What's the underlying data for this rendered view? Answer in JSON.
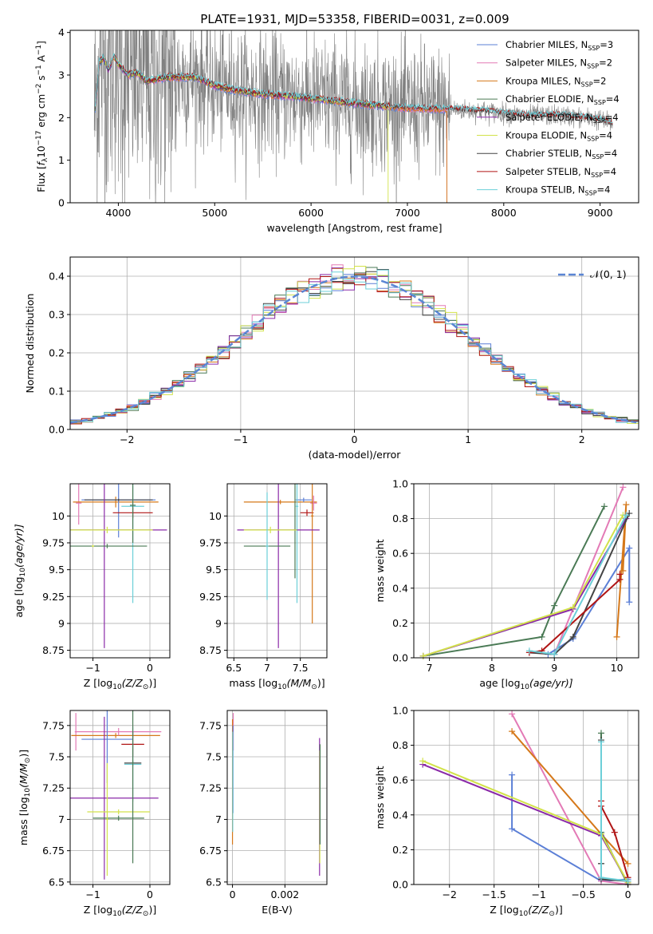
{
  "figure": {
    "title": "PLATE=1931, MJD=53358, FIBERID=0031, z=0.009"
  },
  "colors": {
    "Chabrier MILES": "#5b7fd6",
    "Salpeter MILES": "#e37ab6",
    "Kroupa MILES": "#d5781a",
    "Chabrier ELODIE": "#4a7a55",
    "Salpeter ELODIE": "#8a2aa8",
    "Kroupa ELODIE": "#d2e24a",
    "Chabrier STELIB": "#444444",
    "Salpeter STELIB": "#b01515",
    "Kroupa STELIB": "#6ccfd8",
    "data": "#808080",
    "gauss": "#5b86d4"
  },
  "chart_data": [
    {
      "id": "spectrum",
      "type": "line",
      "xlabel": "wavelength [Angstrom, rest frame]",
      "ylabel_parts": [
        "Flux [",
        "f",
        "λ",
        "10",
        "−17",
        " erg cm",
        "−2",
        " s",
        "−1",
        " A",
        "−1",
        "]"
      ],
      "xlim": [
        3500,
        9400
      ],
      "ylim": [
        0,
        4.05
      ],
      "xticks": [
        4000,
        5000,
        6000,
        7000,
        8000,
        9000
      ],
      "yticks": [
        0,
        1,
        2,
        3,
        4
      ],
      "legend_position": "top-right",
      "legend": [
        {
          "name": "Chabrier MILES",
          "nssp": "3"
        },
        {
          "name": "Salpeter MILES",
          "nssp": "2"
        },
        {
          "name": "Kroupa MILES",
          "nssp": "2"
        },
        {
          "name": "Chabrier ELODIE",
          "nssp": "4"
        },
        {
          "name": "Salpeter ELODIE",
          "nssp": "4"
        },
        {
          "name": "Kroupa ELODIE",
          "nssp": "4"
        },
        {
          "name": "Chabrier STELIB",
          "nssp": "4"
        },
        {
          "name": "Salpeter STELIB",
          "nssp": "4"
        },
        {
          "name": "Kroupa STELIB",
          "nssp": "4"
        }
      ],
      "continuum": {
        "x": [
          3760,
          3800,
          3850,
          3900,
          3950,
          4000,
          4100,
          4200,
          4300,
          4500,
          4800,
          5000,
          5200,
          5500,
          5800,
          6200,
          6600,
          7000,
          7400,
          7800,
          8200,
          8600,
          9000,
          9130
        ],
        "y": [
          2.2,
          3.3,
          3.4,
          3.1,
          3.45,
          3.25,
          3.0,
          3.05,
          2.85,
          2.95,
          2.95,
          2.75,
          2.65,
          2.55,
          2.5,
          2.4,
          2.3,
          2.22,
          2.2,
          2.15,
          2.05,
          2.05,
          1.95,
          1.85
        ]
      },
      "data_range": [
        3750,
        9130
      ],
      "model_ranges": {
        "MILES": [
          3760,
          7410
        ],
        "ELODIE": [
          3760,
          6800
        ],
        "STELIB": [
          3760,
          9130
        ]
      }
    },
    {
      "id": "residuals",
      "type": "step",
      "xlabel": "(data-model)/error",
      "ylabel": "Normed distribution",
      "xlim": [
        -2.5,
        2.5
      ],
      "ylim": [
        0,
        0.45
      ],
      "xticks": [
        -2,
        -1,
        0,
        1,
        2
      ],
      "yticks": [
        0.0,
        0.1,
        0.2,
        0.3,
        0.4
      ],
      "legend_position": "top-right",
      "legend_label": "𝒩(0, 1)"
    },
    {
      "id": "age_vs_Z",
      "type": "errorbar",
      "xlabel_parts": [
        "Z [log",
        "10",
        "(Z/Z",
        "⊙",
        ")]"
      ],
      "ylabel_parts": [
        "age  [log",
        "10",
        "(age/yr)]"
      ],
      "xlim": [
        -1.4,
        0.35
      ],
      "ylim": [
        8.68,
        10.3
      ],
      "xticks": [
        -1,
        0
      ],
      "yticks": [
        8.75,
        9.0,
        9.25,
        9.5,
        9.75,
        10.0
      ],
      "points": [
        {
          "model": "Salpeter MILES",
          "x": -1.25,
          "xe": 0.05,
          "y": 10.12,
          "ye": 0.2
        },
        {
          "model": "Kroupa MILES",
          "x": -0.6,
          "xe": 0.75,
          "y": 10.13,
          "ye": 0.05
        },
        {
          "model": "Chabrier MILES",
          "x": -0.55,
          "xe": 0.65,
          "y": 10.15,
          "ye": 0.35
        },
        {
          "model": "Chabrier STELIB",
          "x": -0.55,
          "xe": 0.6,
          "y": 10.15,
          "ye": 0.01
        },
        {
          "model": "Kroupa STELIB",
          "x": -0.3,
          "xe": 0.2,
          "y": 10.09,
          "ye": 0.9
        },
        {
          "model": "Salpeter STELIB",
          "x": -0.3,
          "xe": 0.35,
          "y": 10.03,
          "ye": 0.05
        },
        {
          "model": "Chabrier ELODIE",
          "x": -0.3,
          "xe": 0.05,
          "y": 10.1,
          "ye": 0.35
        },
        {
          "model": "Salpeter ELODIE",
          "x": -0.8,
          "xe": 1.1,
          "y": 9.87,
          "ye": 1.1
        },
        {
          "model": "Kroupa ELODIE",
          "x": -0.75,
          "xe": 0.8,
          "y": 9.87,
          "ye": 0.03
        },
        {
          "model": "Chabrier ELODIE",
          "x": -0.75,
          "xe": 0.7,
          "y": 9.72,
          "ye": 0.02
        },
        {
          "model": "Kroupa ELODIE",
          "x": -1.0,
          "xe": 0.02,
          "y": 9.72,
          "ye": 0.01
        }
      ]
    },
    {
      "id": "age_vs_mass",
      "type": "errorbar",
      "xlabel_parts": [
        "mass [log",
        "10",
        "(M/M",
        "⊙",
        ")]"
      ],
      "xlim": [
        6.4,
        7.9
      ],
      "ylim": [
        8.68,
        10.3
      ],
      "xticks": [
        6.5,
        7.0,
        7.5
      ],
      "yticks": [
        8.75,
        9.0,
        9.25,
        9.5,
        9.75,
        10.0
      ],
      "points": [
        {
          "model": "Kroupa MILES",
          "x": 7.2,
          "xe": 0.55,
          "y": 10.13,
          "ye": 0.02
        },
        {
          "model": "Salpeter MILES",
          "x": 7.7,
          "xe": 0.05,
          "y": 10.12,
          "ye": 0.07
        },
        {
          "model": "Chabrier MILES",
          "x": 7.55,
          "xe": 0.12,
          "y": 10.15,
          "ye": 0.02
        },
        {
          "model": "Salpeter STELIB",
          "x": 7.6,
          "xe": 0.1,
          "y": 10.03,
          "ye": 0.03
        },
        {
          "model": "Kroupa MILES",
          "x": 7.68,
          "xe": 0.02,
          "y": 10.0,
          "ye": 1.0
        },
        {
          "model": "Kroupa STELIB",
          "x": 7.45,
          "xe": 0.02,
          "y": 10.09,
          "ye": 0.9
        },
        {
          "model": "Chabrier ELODIE",
          "x": 7.42,
          "xe": 0.02,
          "y": 9.87,
          "ye": 0.45
        },
        {
          "model": "Salpeter ELODIE",
          "x": 7.17,
          "xe": 0.62,
          "y": 9.87,
          "ye": 1.1
        },
        {
          "model": "Kroupa ELODIE",
          "x": 7.05,
          "xe": 0.4,
          "y": 9.87,
          "ye": 0.03
        },
        {
          "model": "Chabrier ELODIE",
          "x": 7.0,
          "xe": 0.35,
          "y": 9.72,
          "ye": 0.01
        },
        {
          "model": "Kroupa STELIB",
          "x": 7.0,
          "xe": 0.02,
          "y": 9.72,
          "ye": 0.5
        }
      ]
    },
    {
      "id": "weight_vs_age",
      "type": "line",
      "xlabel_parts": [
        "age  [log",
        "10",
        "(age/yr)]"
      ],
      "ylabel": "mass weight",
      "xlim": [
        6.75,
        10.35
      ],
      "ylim": [
        0.0,
        1.0
      ],
      "xticks": [
        7,
        8,
        9,
        10
      ],
      "yticks": [
        0.0,
        0.2,
        0.4,
        0.6,
        0.8,
        1.0
      ],
      "series": [
        {
          "model": "Chabrier MILES",
          "x": [
            8.9,
            9.3,
            10.2,
            10.2
          ],
          "y": [
            0.02,
            0.11,
            0.63,
            0.32
          ]
        },
        {
          "model": "Salpeter MILES",
          "x": [
            9.0,
            10.1
          ],
          "y": [
            0.02,
            0.98
          ]
        },
        {
          "model": "Kroupa MILES",
          "x": [
            10.0,
            10.15,
            10.1
          ],
          "y": [
            0.12,
            0.88,
            0.5
          ]
        },
        {
          "model": "Chabrier ELODIE",
          "x": [
            6.9,
            8.8,
            9.0,
            9.8
          ],
          "y": [
            0.01,
            0.12,
            0.3,
            0.87
          ]
        },
        {
          "model": "Salpeter ELODIE",
          "x": [
            6.9,
            9.3,
            10.15
          ],
          "y": [
            0.01,
            0.28,
            0.8
          ]
        },
        {
          "model": "Kroupa ELODIE",
          "x": [
            6.9,
            9.3,
            10.1
          ],
          "y": [
            0.01,
            0.29,
            0.82
          ]
        },
        {
          "model": "Chabrier STELIB",
          "x": [
            8.6,
            9.0,
            9.3,
            10.2
          ],
          "y": [
            0.03,
            0.02,
            0.12,
            0.83
          ]
        },
        {
          "model": "Salpeter STELIB",
          "x": [
            8.6,
            8.8,
            10.05,
            10.05
          ],
          "y": [
            0.03,
            0.04,
            0.45,
            0.48
          ]
        },
        {
          "model": "Kroupa STELIB",
          "x": [
            8.6,
            9.0,
            10.15
          ],
          "y": [
            0.04,
            0.02,
            0.82
          ]
        }
      ]
    },
    {
      "id": "mass_vs_Z",
      "type": "errorbar",
      "xlabel_parts": [
        "Z [log",
        "10",
        "(Z/Z",
        "⊙",
        ")]"
      ],
      "ylabel_parts": [
        "mass [log",
        "10",
        "(M/M",
        "⊙",
        ")]"
      ],
      "xlim": [
        -1.4,
        0.35
      ],
      "ylim": [
        6.48,
        7.87
      ],
      "xticks": [
        -1,
        0
      ],
      "yticks": [
        6.5,
        6.75,
        7.0,
        7.25,
        7.5,
        7.75
      ],
      "points": [
        {
          "model": "Salpeter MILES",
          "x": -1.3,
          "xe": 0.02,
          "y": 7.7,
          "ye": 0.15
        },
        {
          "model": "Kroupa MILES",
          "x": -0.6,
          "xe": 0.78,
          "y": 7.67,
          "ye": 0.02
        },
        {
          "model": "Salpeter MILES",
          "x": -0.55,
          "xe": 0.75,
          "y": 7.7,
          "ye": 0.03
        },
        {
          "model": "Chabrier MILES",
          "x": -0.75,
          "xe": 0.45,
          "y": 7.64,
          "ye": 0.35
        },
        {
          "model": "Salpeter STELIB",
          "x": -0.3,
          "xe": 0.2,
          "y": 7.6,
          "ye": 0.1
        },
        {
          "model": "Chabrier STELIB",
          "x": -0.3,
          "xe": 0.15,
          "y": 7.45,
          "ye": 0.02
        },
        {
          "model": "Kroupa STELIB",
          "x": -0.3,
          "xe": 0.15,
          "y": 7.44,
          "ye": 0.3
        },
        {
          "model": "Salpeter ELODIE",
          "x": -0.8,
          "xe": 0.95,
          "y": 7.17,
          "ye": 0.65
        },
        {
          "model": "Kroupa ELODIE",
          "x": -0.55,
          "xe": 0.55,
          "y": 7.06,
          "ye": 0.02
        },
        {
          "model": "Chabrier ELODIE",
          "x": -0.55,
          "xe": 0.45,
          "y": 7.01,
          "ye": 0.02
        },
        {
          "model": "Chabrier ELODIE",
          "x": -0.3,
          "xe": 0.02,
          "y": 7.45,
          "ye": 0.8
        },
        {
          "model": "Kroupa ELODIE",
          "x": -0.75,
          "xe": 0.02,
          "y": 7.0,
          "ye": 0.45
        }
      ]
    },
    {
      "id": "mass_vs_EBV",
      "type": "errorbar",
      "xlabel": "E(B-V)",
      "xlim": [
        -0.0002,
        0.0036
      ],
      "ylim": [
        6.48,
        7.87
      ],
      "xticks": [
        0.0,
        0.002
      ],
      "yticks": [
        6.5,
        6.75,
        7.0,
        7.25,
        7.5,
        7.75
      ],
      "points": [
        {
          "model": "Salpeter MILES",
          "x": 3e-05,
          "xe": 0.0,
          "y": 7.7,
          "ye": 0.15
        },
        {
          "model": "Kroupa MILES",
          "x": 0.0,
          "xe": 0.0,
          "y": 7.3,
          "ye": 0.5
        },
        {
          "model": "Chabrier MILES",
          "x": 2e-05,
          "xe": 0.0,
          "y": 7.4,
          "ye": 0.35
        },
        {
          "model": "Kroupa STELIB",
          "x": 1e-05,
          "xe": 0.0,
          "y": 7.3,
          "ye": 0.4
        },
        {
          "model": "Salpeter ELODIE",
          "x": 0.00332,
          "xe": 0.0,
          "y": 7.1,
          "ye": 0.55
        },
        {
          "model": "Kroupa ELODIE",
          "x": 0.00333,
          "xe": 0.0,
          "y": 7.1,
          "ye": 0.45
        },
        {
          "model": "Chabrier ELODIE",
          "x": 0.00334,
          "xe": 0.0,
          "y": 7.2,
          "ye": 0.4
        }
      ]
    },
    {
      "id": "weight_vs_Z",
      "type": "line",
      "xlabel_parts": [
        "Z [log",
        "10",
        "(Z/Z",
        "⊙",
        ")]"
      ],
      "ylabel": "mass weight",
      "xlim": [
        -2.4,
        0.12
      ],
      "ylim": [
        0.0,
        1.0
      ],
      "xticks": [
        -2.0,
        -1.5,
        -1.0,
        -0.5,
        0.0
      ],
      "yticks": [
        0.0,
        0.2,
        0.4,
        0.6,
        0.8,
        1.0
      ],
      "series": [
        {
          "model": "Chabrier MILES",
          "x": [
            -1.3,
            -1.3,
            -0.3,
            0.0
          ],
          "y": [
            0.63,
            0.32,
            0.02,
            0.03
          ]
        },
        {
          "model": "Salpeter MILES",
          "x": [
            -1.3,
            -0.3,
            0.0
          ],
          "y": [
            0.98,
            0.02,
            0.0
          ]
        },
        {
          "model": "Kroupa MILES",
          "x": [
            -1.3,
            -0.3,
            0.0
          ],
          "y": [
            0.88,
            0.29,
            0.12
          ]
        },
        {
          "model": "Chabrier ELODIE",
          "x": [
            -0.3,
            -0.3,
            -0.3,
            0.0
          ],
          "y": [
            0.87,
            0.12,
            0.3,
            0.0
          ]
        },
        {
          "model": "Salpeter ELODIE",
          "x": [
            -2.3,
            -0.3,
            0.0
          ],
          "y": [
            0.69,
            0.28,
            0.01
          ]
        },
        {
          "model": "Kroupa ELODIE",
          "x": [
            -2.3,
            -0.3,
            0.0
          ],
          "y": [
            0.71,
            0.29,
            0.01
          ]
        },
        {
          "model": "Chabrier STELIB",
          "x": [
            -0.3,
            -0.3,
            -0.3,
            0.0
          ],
          "y": [
            0.83,
            0.12,
            0.03,
            0.02
          ]
        },
        {
          "model": "Salpeter STELIB",
          "x": [
            -0.3,
            -0.3,
            -0.15,
            0.0
          ],
          "y": [
            0.48,
            0.45,
            0.3,
            0.04
          ]
        },
        {
          "model": "Kroupa STELIB",
          "x": [
            -0.3,
            -0.3,
            0.0
          ],
          "y": [
            0.82,
            0.04,
            0.02
          ]
        }
      ]
    }
  ]
}
